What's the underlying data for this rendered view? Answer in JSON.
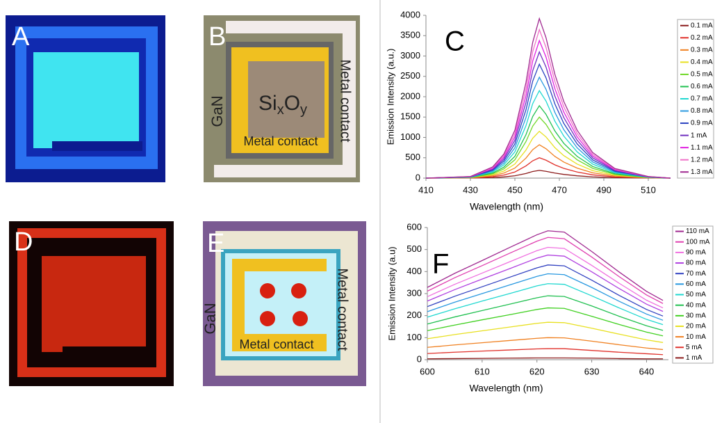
{
  "panels": {
    "A": {
      "label": "A"
    },
    "B": {
      "label": "B",
      "gan": "GaN",
      "metal_side": "Metal contact",
      "metal_bottom": "Metal contact",
      "oxide": [
        "Si",
        "x",
        "O",
        "y"
      ]
    },
    "D": {
      "label": "D"
    },
    "E": {
      "label": "E",
      "gan": "GaN",
      "metal_side": "Metal contact",
      "metal_bottom": "Metal contact"
    }
  },
  "chart_data": [
    {
      "type": "line",
      "panel_label": "C",
      "xlabel": "Wavelength (nm)",
      "ylabel": "Emission Intensity (a.u.)",
      "x": [
        410,
        430,
        440,
        445,
        450,
        455,
        458,
        461,
        464,
        468,
        472,
        478,
        485,
        495,
        510,
        520
      ],
      "xlim": [
        410,
        520
      ],
      "xticks": [
        410,
        430,
        450,
        470,
        490,
        510
      ],
      "ylim": [
        0,
        4000
      ],
      "yticks": [
        0,
        500,
        1000,
        1500,
        2000,
        2500,
        3000,
        3500,
        4000
      ],
      "series": [
        {
          "name": "0.1 mA",
          "color": "#8b1a1a",
          "values": [
            0,
            2,
            13,
            29,
            57,
            114,
            162,
            190,
            167,
            124,
            91,
            57,
            30,
            11,
            2,
            0
          ]
        },
        {
          "name": "0.2 mA",
          "color": "#e0302a",
          "values": [
            0,
            5,
            35,
            75,
            150,
            300,
            425,
            500,
            440,
            325,
            240,
            150,
            80,
            30,
            5,
            0
          ]
        },
        {
          "name": "0.3 mA",
          "color": "#f08020",
          "values": [
            0,
            8,
            57,
            123,
            246,
            492,
            697,
            820,
            722,
            533,
            394,
            246,
            131,
            49,
            8,
            0
          ]
        },
        {
          "name": "0.4 mA",
          "color": "#e8e020",
          "values": [
            0,
            12,
            81,
            173,
            345,
            690,
            978,
            1150,
            1012,
            748,
            552,
            345,
            184,
            69,
            12,
            0
          ]
        },
        {
          "name": "0.5 mA",
          "color": "#70d828",
          "values": [
            0,
            15,
            105,
            225,
            450,
            900,
            1275,
            1500,
            1320,
            975,
            720,
            450,
            240,
            90,
            15,
            0
          ]
        },
        {
          "name": "0.6 mA",
          "color": "#20c050",
          "values": [
            0,
            18,
            125,
            267,
            534,
            1068,
            1513,
            1780,
            1566,
            1157,
            854,
            534,
            285,
            107,
            18,
            0
          ]
        },
        {
          "name": "0.7 mA",
          "color": "#20d8d0",
          "values": [
            0,
            22,
            151,
            323,
            645,
            1290,
            1828,
            2150,
            1892,
            1398,
            1032,
            645,
            344,
            129,
            22,
            0
          ]
        },
        {
          "name": "0.8 mA",
          "color": "#2898e0",
          "values": [
            0,
            25,
            174,
            372,
            744,
            1488,
            2108,
            2480,
            2182,
            1612,
            1190,
            744,
            397,
            149,
            25,
            0
          ]
        },
        {
          "name": "0.9 mA",
          "color": "#2840c0",
          "values": [
            0,
            28,
            196,
            420,
            840,
            1680,
            2380,
            2800,
            2464,
            1820,
            1344,
            840,
            448,
            168,
            28,
            0
          ]
        },
        {
          "name": "1 mA",
          "color": "#7030c0",
          "values": [
            0,
            31,
            217,
            465,
            930,
            1860,
            2635,
            3100,
            2728,
            2015,
            1488,
            930,
            496,
            186,
            31,
            0
          ]
        },
        {
          "name": "1.1 mA",
          "color": "#e020e0",
          "values": [
            0,
            34,
            237,
            507,
            1014,
            2028,
            2873,
            3380,
            2974,
            2197,
            1622,
            1014,
            541,
            203,
            34,
            0
          ]
        },
        {
          "name": "1.2 mA",
          "color": "#f070c8",
          "values": [
            0,
            37,
            256,
            548,
            1095,
            2190,
            3103,
            3650,
            3212,
            2373,
            1752,
            1095,
            584,
            219,
            37,
            0
          ]
        },
        {
          "name": "1.3 mA",
          "color": "#a02890",
          "values": [
            0,
            39,
            274,
            588,
            1176,
            2352,
            3332,
            3920,
            3450,
            2548,
            1882,
            1176,
            627,
            235,
            39,
            0
          ]
        }
      ]
    },
    {
      "type": "line",
      "panel_label": "F",
      "xlabel": "Wavelength (nm)",
      "ylabel": "Emission Intensity (a.u)",
      "x": [
        600,
        605,
        610,
        615,
        620,
        622,
        625,
        630,
        635,
        640,
        643
      ],
      "xlim": [
        600,
        644
      ],
      "xticks": [
        600,
        610,
        620,
        630,
        640
      ],
      "ylim": [
        0,
        600
      ],
      "yticks": [
        0,
        100,
        200,
        300,
        400,
        500,
        600
      ],
      "series": [
        {
          "name": "110 mA",
          "color": "#a02890",
          "values": [
            328,
            392,
            450,
            509,
            567,
            585,
            579,
            491,
            398,
            310,
            269
          ]
        },
        {
          "name": "100 mA",
          "color": "#e040b0",
          "values": [
            311,
            372,
            427,
            483,
            538,
            555,
            549,
            466,
            377,
            294,
            255
          ]
        },
        {
          "name": "90 mA",
          "color": "#f070e0",
          "values": [
            286,
            342,
            393,
            444,
            495,
            510,
            505,
            428,
            347,
            270,
            235
          ]
        },
        {
          "name": "80 mA",
          "color": "#b040e0",
          "values": [
            266,
            318,
            366,
            413,
            461,
            475,
            470,
            399,
            323,
            252,
            219
          ]
        },
        {
          "name": "70 mA",
          "color": "#3040c0",
          "values": [
            241,
            288,
            331,
            374,
            417,
            430,
            426,
            361,
            292,
            228,
            198
          ]
        },
        {
          "name": "60 mA",
          "color": "#2898e0",
          "values": [
            218,
            261,
            300,
            339,
            378,
            390,
            386,
            328,
            265,
            207,
            179
          ]
        },
        {
          "name": "50 mA",
          "color": "#20d8d0",
          "values": [
            193,
            231,
            266,
            300,
            335,
            345,
            342,
            290,
            235,
            183,
            159
          ]
        },
        {
          "name": "40 mA",
          "color": "#20c050",
          "values": [
            162,
            194,
            223,
            252,
            281,
            290,
            287,
            244,
            197,
            154,
            133
          ]
        },
        {
          "name": "30 mA",
          "color": "#40d020",
          "values": [
            132,
            157,
            181,
            204,
            228,
            235,
            233,
            197,
            160,
            125,
            108
          ]
        },
        {
          "name": "20 mA",
          "color": "#e8e020",
          "values": [
            95,
            114,
            131,
            148,
            165,
            170,
            168,
            143,
            116,
            90,
            78
          ]
        },
        {
          "name": "10 mA",
          "color": "#f08020",
          "values": [
            56,
            67,
            77,
            87,
            97,
            100,
            99,
            84,
            68,
            53,
            46
          ]
        },
        {
          "name": "5 mA",
          "color": "#e0302a",
          "values": [
            28,
            34,
            39,
            44,
            49,
            50,
            50,
            42,
            34,
            27,
            23
          ]
        },
        {
          "name": "1 mA",
          "color": "#8b1a1a",
          "values": [
            4,
            5,
            6,
            7,
            8,
            8,
            8,
            7,
            5,
            4,
            4
          ]
        }
      ]
    }
  ]
}
